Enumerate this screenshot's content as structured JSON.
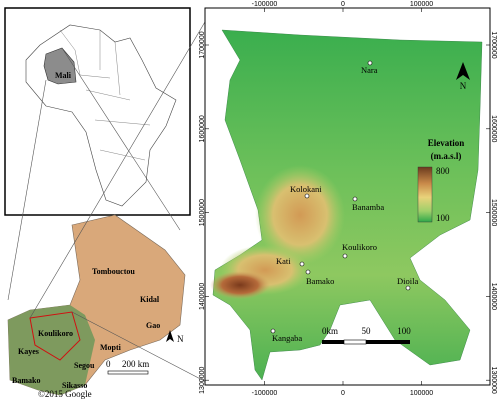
{
  "africa_inset": {
    "label": "Mali"
  },
  "mali_inset": {
    "regions": [
      "Tombouctou",
      "Kidal",
      "Gao",
      "Mopti",
      "Koulikoro",
      "Kayes",
      "Segou",
      "Bamako",
      "Sikasso"
    ],
    "north": "N",
    "scale": [
      "0",
      "200 km"
    ],
    "credit": "©2015 Google"
  },
  "main_map": {
    "x_ticks": [
      -100000,
      0,
      100000
    ],
    "y_ticks": [
      1700000,
      1600000,
      1500000,
      1400000,
      1300000
    ],
    "places": [
      "Nara",
      "Kolokani",
      "Banamba",
      "Koulikoro",
      "Kati",
      "Bamako",
      "Dioila",
      "Kangaba"
    ],
    "legend": {
      "title": "Elevation",
      "unit": "(m.a.s.l)",
      "high": "800",
      "low": "100"
    },
    "scale": [
      "0km",
      "50",
      "100"
    ],
    "north": "N"
  }
}
